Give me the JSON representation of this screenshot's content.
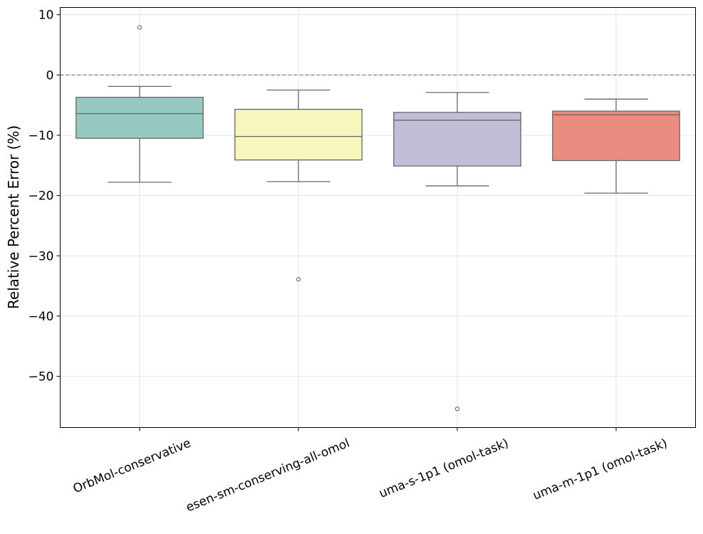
{
  "chart_data": {
    "type": "box",
    "title": "",
    "xlabel": "",
    "ylabel": "Relative Percent Error (%)",
    "ylim": [
      -58.5,
      11.2
    ],
    "yticks": [
      10,
      0,
      -10,
      -20,
      -30,
      -40,
      -50
    ],
    "ytick_labels": [
      "10",
      "0",
      "−10",
      "−20",
      "−30",
      "−40",
      "−50"
    ],
    "grid": true,
    "reference_line": {
      "y": 0,
      "style": "dashed"
    },
    "categories": [
      "OrbMol-conservative",
      "esen-sm-conserving-all-omol",
      "uma-s-1p1 (omol-task)",
      "uma-m-1p1 (omol-task)"
    ],
    "boxes": [
      {
        "whisker_high": -1.9,
        "q3": -3.7,
        "median": -6.4,
        "q1": -10.5,
        "whisker_low": -17.8,
        "outliers": [
          7.9
        ]
      },
      {
        "whisker_high": -2.5,
        "q3": -5.7,
        "median": -10.2,
        "q1": -14.1,
        "whisker_low": -17.7,
        "outliers": [
          -33.9
        ]
      },
      {
        "whisker_high": -2.9,
        "q3": -6.2,
        "median": -7.5,
        "q1": -15.1,
        "whisker_low": -18.4,
        "outliers": [
          -55.4
        ]
      },
      {
        "whisker_high": -4.0,
        "q3": -6.0,
        "median": -6.6,
        "q1": -14.2,
        "whisker_low": -19.6,
        "outliers": []
      }
    ],
    "colors": [
      "#96c9c0",
      "#f7f7bd",
      "#c1bfd7",
      "#e98d81"
    ],
    "line_color": "#676767",
    "grid_color": "#e6e6e6"
  }
}
